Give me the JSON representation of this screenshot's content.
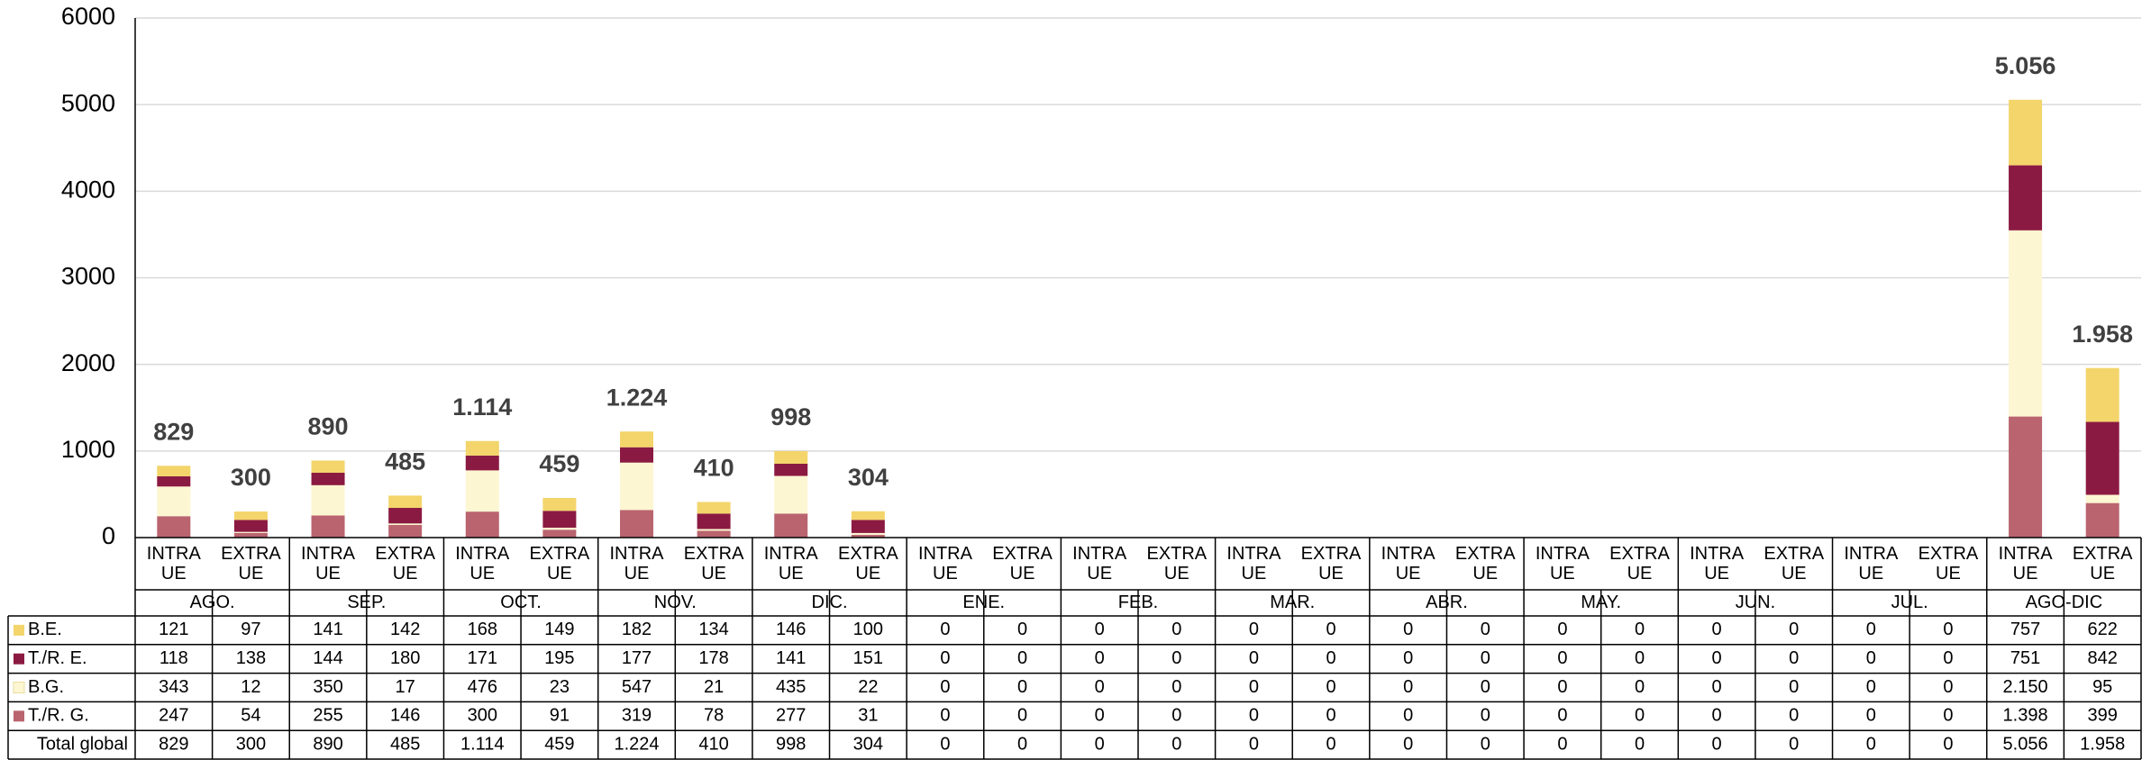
{
  "chart_data": {
    "type": "stacked_bar",
    "categories": [
      "INTRA UE",
      "EXTRA UE",
      "INTRA UE",
      "EXTRA UE",
      "INTRA UE",
      "EXTRA UE",
      "INTRA UE",
      "EXTRA UE",
      "INTRA UE",
      "EXTRA UE",
      "INTRA UE",
      "EXTRA UE",
      "INTRA UE",
      "EXTRA UE",
      "INTRA UE",
      "EXTRA UE",
      "INTRA UE",
      "EXTRA UE",
      "INTRA UE",
      "EXTRA UE",
      "INTRA UE",
      "EXTRA UE",
      "INTRA UE",
      "EXTRA UE",
      "INTRA UE",
      "EXTRA UE"
    ],
    "groups": [
      "AGO.",
      "SEP.",
      "OCT.",
      "NOV.",
      "DIC.",
      "ENE.",
      "FEB.",
      "MAR.",
      "ABR.",
      "MAY.",
      "JUN.",
      "JUL.",
      "AGO-DIC"
    ],
    "series": [
      {
        "name": "B.E.",
        "color": "#f3d56b",
        "values": [
          121,
          97,
          141,
          142,
          168,
          149,
          182,
          134,
          146,
          100,
          0,
          0,
          0,
          0,
          0,
          0,
          0,
          0,
          0,
          0,
          0,
          0,
          0,
          0,
          757,
          622
        ]
      },
      {
        "name": "T./R. E.",
        "color": "#8b1a42",
        "values": [
          118,
          138,
          144,
          180,
          171,
          195,
          177,
          178,
          141,
          151,
          0,
          0,
          0,
          0,
          0,
          0,
          0,
          0,
          0,
          0,
          0,
          0,
          0,
          0,
          751,
          842
        ]
      },
      {
        "name": "B.G.",
        "color": "#fdf6d2",
        "values": [
          343,
          12,
          350,
          17,
          476,
          23,
          547,
          21,
          435,
          22,
          0,
          0,
          0,
          0,
          0,
          0,
          0,
          0,
          0,
          0,
          0,
          0,
          0,
          0,
          2150,
          95
        ],
        "value_labels": [
          "343",
          "12",
          "350",
          "17",
          "476",
          "23",
          "547",
          "21",
          "435",
          "22",
          "0",
          "0",
          "0",
          "0",
          "0",
          "0",
          "0",
          "0",
          "0",
          "0",
          "0",
          "0",
          "0",
          "0",
          "2.150",
          "95"
        ]
      },
      {
        "name": "T./R. G.",
        "color": "#b9646f",
        "values": [
          247,
          54,
          255,
          146,
          300,
          91,
          319,
          78,
          277,
          31,
          0,
          0,
          0,
          0,
          0,
          0,
          0,
          0,
          0,
          0,
          0,
          0,
          0,
          0,
          1398,
          399
        ],
        "value_labels": [
          "247",
          "54",
          "255",
          "146",
          "300",
          "91",
          "319",
          "78",
          "277",
          "31",
          "0",
          "0",
          "0",
          "0",
          "0",
          "0",
          "0",
          "0",
          "0",
          "0",
          "0",
          "0",
          "0",
          "0",
          "1.398",
          "399"
        ]
      }
    ],
    "total": {
      "name": "Total global",
      "values": [
        829,
        300,
        890,
        485,
        1114,
        459,
        1224,
        410,
        998,
        304,
        0,
        0,
        0,
        0,
        0,
        0,
        0,
        0,
        0,
        0,
        0,
        0,
        0,
        0,
        5056,
        1958
      ],
      "value_labels": [
        "829",
        "300",
        "890",
        "485",
        "1.114",
        "459",
        "1.224",
        "410",
        "998",
        "304",
        "0",
        "0",
        "0",
        "0",
        "0",
        "0",
        "0",
        "0",
        "0",
        "0",
        "0",
        "0",
        "0",
        "0",
        "5.056",
        "1.958"
      ]
    },
    "ylim": [
      0,
      6000
    ],
    "yticks": [
      0,
      1000,
      2000,
      3000,
      4000,
      5000,
      6000
    ],
    "grid": true
  }
}
